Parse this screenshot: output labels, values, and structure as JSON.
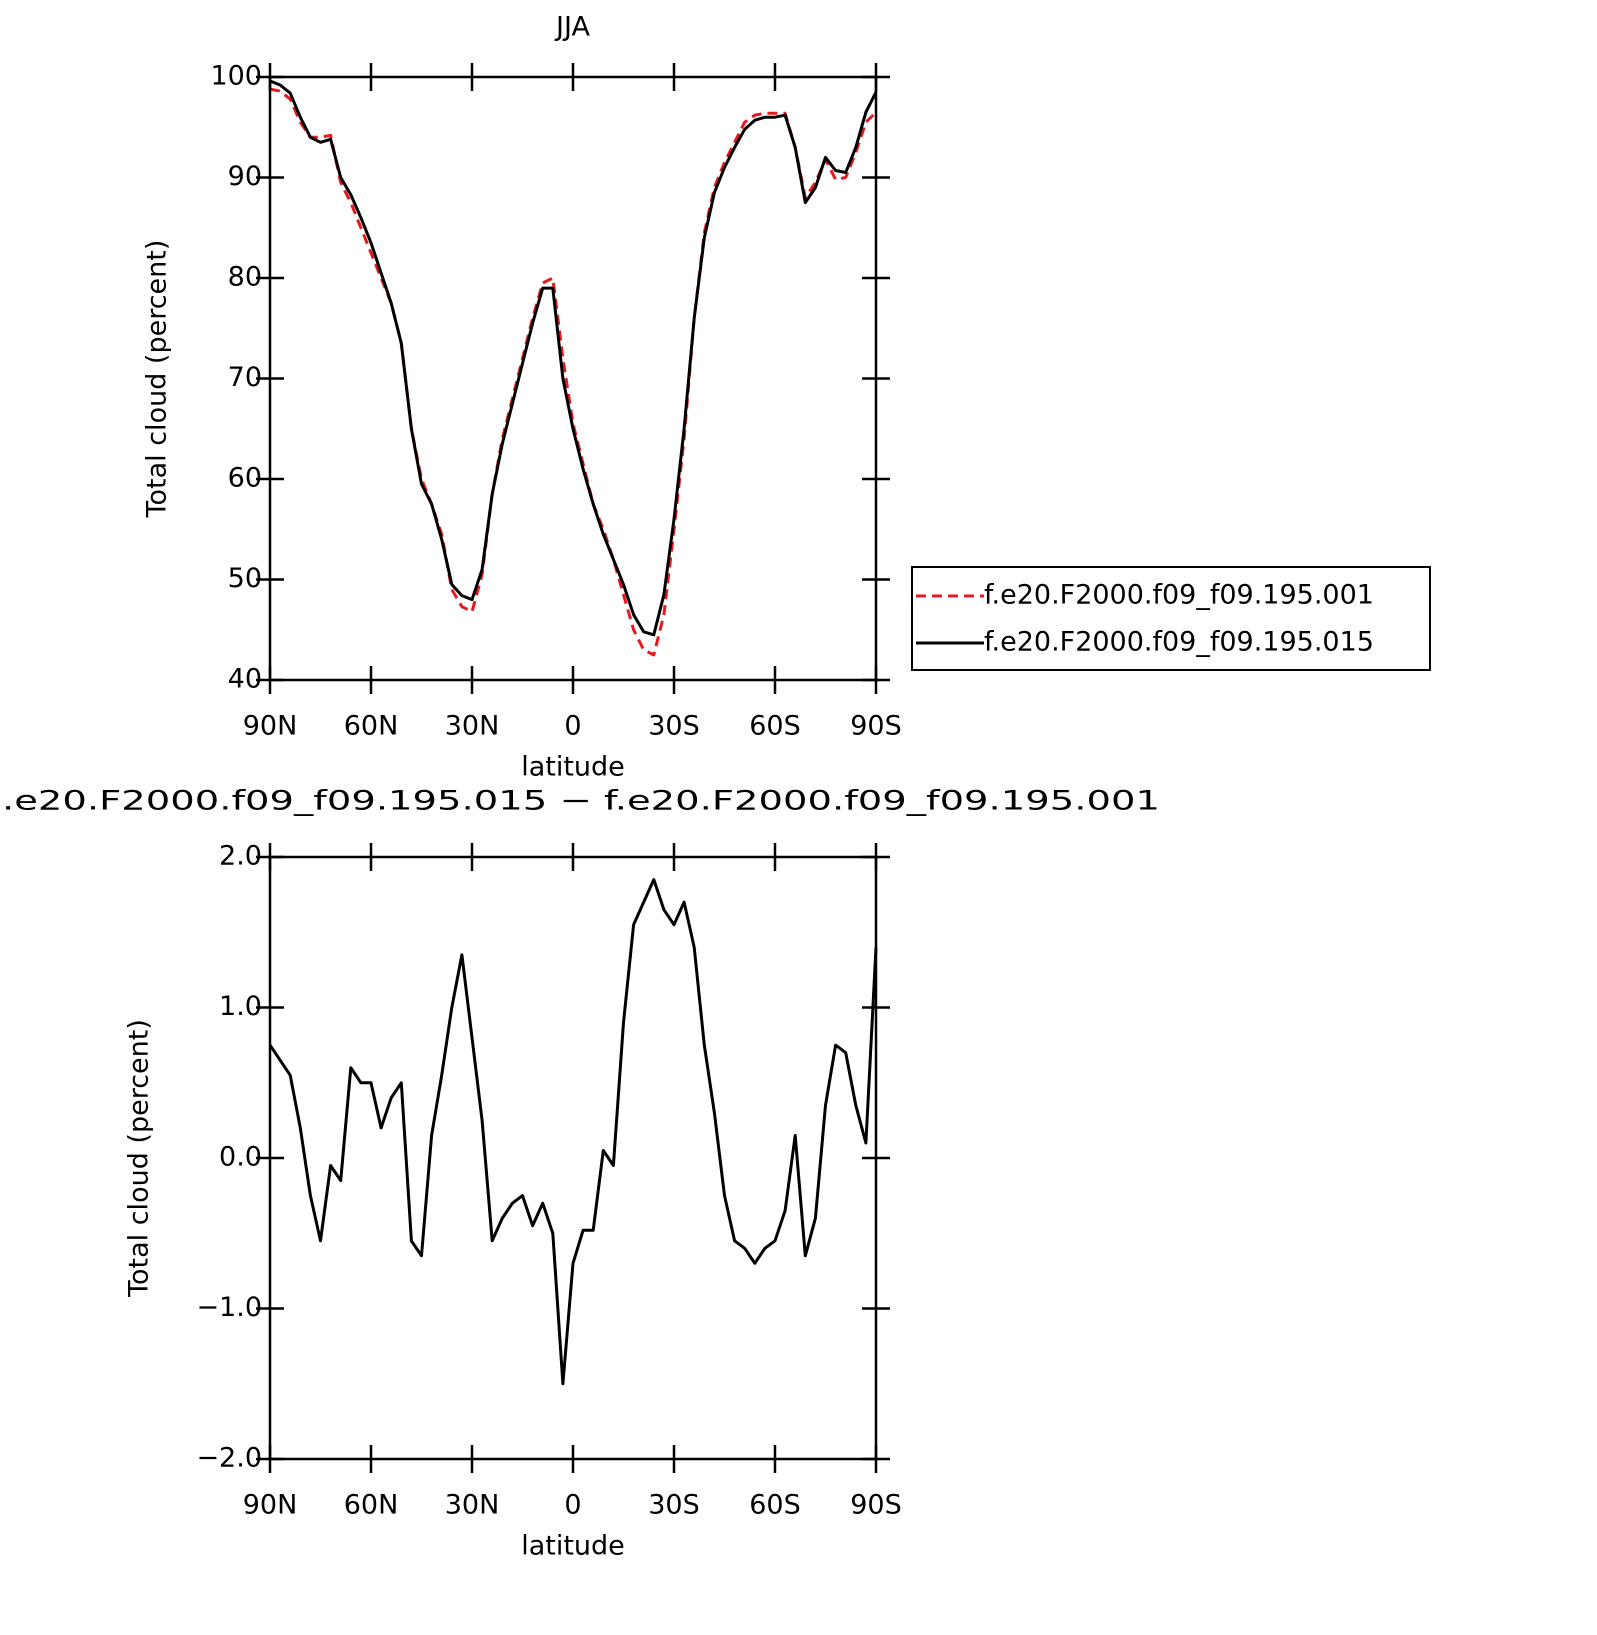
{
  "chart_data": [
    {
      "type": "line",
      "title": "JJA",
      "xlabel": "latitude",
      "ylabel": "Total cloud (percent)",
      "x": [
        90,
        87,
        84,
        81,
        78,
        75,
        72,
        69,
        66,
        63,
        60,
        57,
        54,
        51,
        48,
        45,
        42,
        39,
        36,
        33,
        30,
        27,
        24,
        21,
        18,
        15,
        12,
        9,
        6,
        3,
        0,
        -3,
        -6,
        -9,
        -12,
        -15,
        -18,
        -21,
        -24,
        -27,
        -30,
        -33,
        -36,
        -39,
        -42,
        -45,
        -48,
        -51,
        -54,
        -57,
        -60,
        -63,
        -66,
        -69,
        -72,
        -75,
        -78,
        -81,
        -84,
        -87,
        -90
      ],
      "series": [
        {
          "name": "f.e20.F2000.f09_f09.195.001",
          "color": "#e8191d",
          "dash": true,
          "values": [
            98.8,
            98.6,
            97.8,
            95.5,
            94,
            94,
            94.2,
            89.5,
            87.5,
            85,
            82.5,
            80,
            77.5,
            73.5,
            65,
            60,
            57.5,
            54.5,
            49,
            47.3,
            46.8,
            50.5,
            58.5,
            64,
            68,
            72,
            76,
            79.5,
            80,
            72,
            65.5,
            61.5,
            57.5,
            55,
            52,
            48.5,
            45,
            43,
            42.5,
            46.5,
            55,
            64,
            76,
            84.5,
            89,
            91.5,
            93.5,
            95.5,
            96.2,
            96.4,
            96.4,
            96.4,
            93,
            88,
            89.5,
            91.8,
            89.8,
            90,
            92.5,
            95.5,
            96.5
          ]
        },
        {
          "name": "f.e20.F2000.f09_f09.195.015",
          "color": "#000000",
          "dash": false,
          "values": [
            99.6,
            99.2,
            98.4,
            96,
            94,
            93.5,
            93.8,
            90,
            88.3,
            86,
            83.5,
            80.5,
            77.5,
            73.5,
            65,
            59.5,
            57.5,
            54,
            49.5,
            48.4,
            48,
            51,
            58.5,
            63.5,
            67.5,
            71.5,
            75.5,
            79,
            79,
            70,
            65,
            61,
            57.5,
            54.5,
            52,
            49.5,
            46.5,
            44.8,
            44.5,
            48.5,
            56,
            65,
            76,
            84,
            88.5,
            91,
            93,
            94.8,
            95.7,
            96,
            96,
            96.2,
            93,
            87.5,
            89,
            92,
            90.7,
            90.5,
            93,
            96.5,
            98.5
          ]
        }
      ],
      "xlim": [
        90,
        -90
      ],
      "xticks": [
        {
          "value": 90,
          "label": "90N"
        },
        {
          "value": 60,
          "label": "60N"
        },
        {
          "value": 30,
          "label": "30N"
        },
        0,
        {
          "value": -30,
          "label": "30S"
        },
        {
          "value": -60,
          "label": "60S"
        },
        {
          "value": -90,
          "label": "90S"
        }
      ],
      "ylim": [
        40,
        100
      ],
      "yticks": [
        40,
        50,
        60,
        70,
        80,
        90,
        100
      ],
      "legend": "right"
    },
    {
      "type": "line",
      "title": ".e20.F2000.f09_f09.195.015 − f.e20.F2000.f09_f09.195.001",
      "xlabel": "latitude",
      "ylabel": "Total cloud (percent)",
      "x": [
        90,
        87,
        84,
        81,
        78,
        75,
        72,
        69,
        66,
        63,
        60,
        57,
        54,
        51,
        48,
        45,
        42,
        39,
        36,
        33,
        30,
        27,
        24,
        21,
        18,
        15,
        12,
        9,
        6,
        3,
        0,
        -3,
        -6,
        -9,
        -12,
        -15,
        -18,
        -21,
        -24,
        -27,
        -30,
        -33,
        -36,
        -39,
        -42,
        -45,
        -48,
        -51,
        -54,
        -57,
        -60,
        -63,
        -66,
        -69,
        -72,
        -75,
        -78,
        -81,
        -84,
        -87,
        -90
      ],
      "series": [
        {
          "color": "#000000",
          "dash": false,
          "values": [
            0.75,
            0.65,
            0.55,
            0.2,
            -0.25,
            -0.55,
            -0.05,
            -0.15,
            0.6,
            0.5,
            0.5,
            0.2,
            0.4,
            0.5,
            -0.55,
            -0.65,
            0.15,
            0.55,
            1.0,
            1.35,
            0.8,
            0.25,
            -0.55,
            -0.4,
            -0.3,
            -0.25,
            -0.45,
            -0.3,
            -0.5,
            -1.5,
            -0.7,
            -0.48,
            -0.48,
            0.05,
            -0.05,
            0.9,
            1.55,
            1.7,
            1.85,
            1.65,
            1.55,
            1.7,
            1.4,
            0.75,
            0.3,
            -0.25,
            -0.55,
            -0.6,
            -0.7,
            -0.6,
            -0.55,
            -0.35,
            0.15,
            -0.65,
            -0.4,
            0.35,
            0.75,
            0.7,
            0.35,
            0.1,
            1.4
          ]
        }
      ],
      "xlim": [
        90,
        -90
      ],
      "xticks": [
        {
          "value": 90,
          "label": "90N"
        },
        {
          "value": 60,
          "label": "60N"
        },
        {
          "value": 30,
          "label": "30N"
        },
        0,
        {
          "value": -30,
          "label": "30S"
        },
        {
          "value": -60,
          "label": "60S"
        },
        {
          "value": -90,
          "label": "90S"
        }
      ],
      "ylim": [
        -2,
        2
      ],
      "yticks": [
        {
          "value": -2,
          "label": "−2.0"
        },
        {
          "value": -1,
          "label": "−1.0"
        },
        {
          "value": 0,
          "label": "0.0"
        },
        {
          "value": 1,
          "label": "1.0"
        },
        {
          "value": 2,
          "label": "2.0"
        }
      ]
    }
  ]
}
